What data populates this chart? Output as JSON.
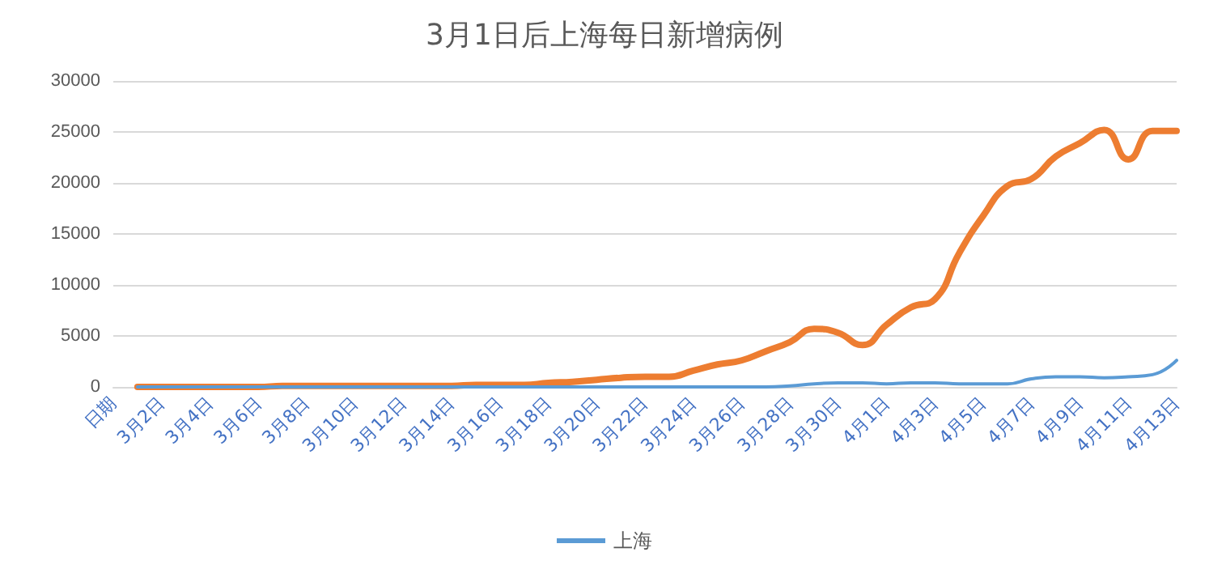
{
  "chart_data": {
    "type": "line",
    "title": "3月1日后上海每日新增病例",
    "categories": [
      "日期",
      null,
      "3月2日",
      null,
      "3月4日",
      null,
      "3月6日",
      null,
      "3月8日",
      null,
      "3月10日",
      null,
      "3月12日",
      null,
      "3月14日",
      null,
      "3月16日",
      null,
      "3月18日",
      null,
      "3月20日",
      null,
      "3月22日",
      null,
      "3月24日",
      null,
      "3月26日",
      null,
      "3月28日",
      null,
      "3月30日",
      null,
      "4月1日",
      null,
      "4月3日",
      null,
      "4月5日",
      null,
      "4月7日",
      null,
      "4月9日",
      null,
      "4月11日",
      null,
      "4月13日"
    ],
    "series": [
      {
        "name": "上海",
        "color": "#5b9bd5",
        "values": [
          null,
          0,
          0,
          0,
          0,
          0,
          0,
          0,
          0,
          0,
          0,
          0,
          0,
          0,
          0,
          0,
          0,
          0,
          0,
          0,
          0,
          0,
          0,
          0,
          0,
          0,
          0,
          0,
          100,
          300,
          400,
          400,
          300,
          400,
          400,
          300,
          300,
          300,
          800,
          1000,
          1000,
          900,
          1000,
          1200,
          2600
        ]
      },
      {
        "color": "#ed7d31",
        "values": [
          null,
          0,
          0,
          0,
          0,
          0,
          0,
          100,
          100,
          100,
          100,
          100,
          100,
          100,
          100,
          200,
          200,
          200,
          400,
          500,
          700,
          900,
          1000,
          1000,
          1600,
          2200,
          2600,
          3500,
          4400,
          5700,
          5300,
          4100,
          6100,
          7800,
          8600,
          13100,
          16800,
          19700,
          20400,
          22600,
          23900,
          25200,
          22300,
          25100,
          25100
        ]
      }
    ],
    "ylim": [
      0,
      30000
    ],
    "yticks": [
      0,
      5000,
      10000,
      15000,
      20000,
      25000,
      30000
    ],
    "grid": "y",
    "legend": "bottom",
    "marker": "none",
    "line_style": "solid"
  }
}
